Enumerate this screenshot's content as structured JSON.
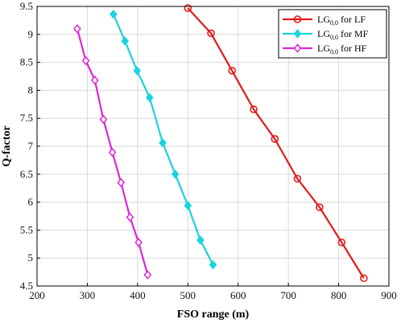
{
  "chart_data": {
    "type": "line",
    "xlabel": "FSO range (m)",
    "ylabel": "Q-factor",
    "xlim": [
      200,
      900
    ],
    "ylim": [
      4.5,
      9.5
    ],
    "xticks": [
      200,
      300,
      400,
      500,
      600,
      700,
      800,
      900
    ],
    "yticks": [
      4.5,
      5,
      5.5,
      6,
      6.5,
      7,
      7.5,
      8,
      8.5,
      9,
      9.5
    ],
    "grid": true,
    "legend_position": "top-right",
    "series": [
      {
        "name": "LG0,0 for LF",
        "legend_main": "LG",
        "legend_sub": "0,0",
        "legend_rest": " for LF",
        "color": "#e41a1c",
        "marker": "circle",
        "x": [
          500,
          546,
          588,
          631,
          673,
          718,
          762,
          806,
          850
        ],
        "y": [
          9.47,
          9.02,
          8.35,
          7.66,
          7.13,
          6.42,
          5.91,
          5.28,
          4.64
        ]
      },
      {
        "name": "LG0,0 for MF",
        "legend_main": "LG",
        "legend_sub": "0,0",
        "legend_rest": " for MF",
        "color": "#19d3de",
        "marker": "diamond-filled",
        "x": [
          352,
          375,
          399,
          424,
          450,
          475,
          500,
          525,
          550
        ],
        "y": [
          9.36,
          8.88,
          8.35,
          7.87,
          7.06,
          6.5,
          5.94,
          5.32,
          4.88
        ]
      },
      {
        "name": "LG0,0 for HF",
        "legend_main": "LG",
        "legend_sub": "0,0",
        "legend_rest": " for HF",
        "color": "#e026d6",
        "marker": "diamond",
        "x": [
          280,
          297,
          315,
          332,
          350,
          367,
          385,
          402,
          420
        ],
        "y": [
          9.1,
          8.53,
          8.18,
          7.48,
          6.89,
          6.35,
          5.73,
          5.28,
          4.7
        ]
      }
    ]
  }
}
